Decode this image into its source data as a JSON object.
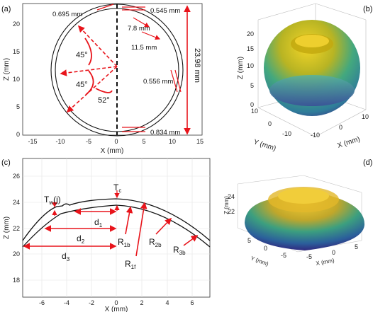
{
  "panels": {
    "a": {
      "label": "(a)",
      "xlabel": "X (mm)",
      "ylabel": "Z (mm)",
      "xticks": [
        "-15",
        "-10",
        "-5",
        "0",
        "5",
        "10",
        "15"
      ],
      "yticks": [
        "0",
        "5",
        "10",
        "15",
        "20"
      ],
      "annotations": {
        "t_top_left": "0.695 mm",
        "t_top_right": "0.545 mm",
        "r1": "7.8 mm",
        "r2": "11.5 mm",
        "t_mid": "0.556 mm",
        "t_bottom": "0.834 mm",
        "height": "23.98 mm",
        "angle1": "45°",
        "angle2": "45°",
        "angle3": "52°"
      }
    },
    "b": {
      "label": "(b)",
      "xlabel": "X (mm)",
      "ylabel": "Y (mm)",
      "zlabel": "Z (mm)",
      "zticks": [
        "0",
        "5",
        "10",
        "15",
        "20"
      ],
      "yticks": [
        "10",
        "0",
        "-10"
      ],
      "xticks": [
        "-10",
        "0",
        "10"
      ]
    },
    "c": {
      "label": "(c)",
      "xlabel": "X (mm)",
      "ylabel": "Z (mm)",
      "xticks": [
        "-6",
        "-4",
        "-2",
        "0",
        "2",
        "4",
        "6"
      ],
      "yticks": [
        "18",
        "20",
        "22",
        "24",
        "26"
      ],
      "annotations": {
        "tw": "T",
        "tw_sub": "w",
        "tw_suffix": "(j)",
        "tc": "T",
        "tc_sub": "c",
        "d1": "d",
        "d1_sub": "1",
        "d2": "d",
        "d2_sub": "2",
        "d3": "d",
        "d3_sub": "3",
        "r1b": "R",
        "r1b_sub": "1b",
        "r1f": "R",
        "r1f_sub": "1f",
        "r2b": "R",
        "r2b_sub": "2b",
        "r3b": "R",
        "r3b_sub": "3b"
      }
    },
    "d": {
      "label": "(d)",
      "xlabel": "X (mm)",
      "ylabel": "Y (mm)",
      "zlabel": "Z (mm)",
      "zticks": [
        "22",
        "24"
      ],
      "yticks": [
        "5",
        "0",
        "-5"
      ],
      "xticks": [
        "-5",
        "0",
        "5"
      ]
    }
  },
  "colors": {
    "annotation_red": "#e8141b",
    "dome_yellow": "#e1c11c",
    "dome_green": "#3aa38a",
    "dome_blue": "#3d3a9a"
  }
}
